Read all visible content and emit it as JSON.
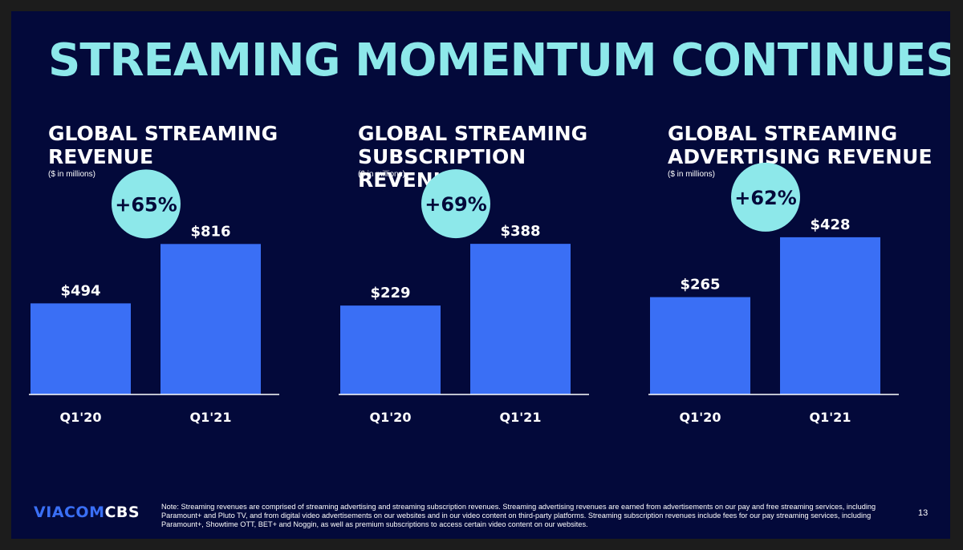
{
  "title": "STREAMING MOMENTUM CONTINUES",
  "logo": {
    "part1": "VIACOM",
    "part2": "CBS"
  },
  "note": "Note: Streaming revenues are comprised of streaming advertising and streaming subscription revenues. Streaming advertising revenues are earned from advertisements on our pay and free streaming services, including Paramount+ and Pluto TV, and from digital video advertisements on our websites and in our video content on third-party platforms. Streaming subscription revenues include fees for our pay streaming services, including Paramount+, Showtime OTT, BET+ and Noggin, as well as premium subscriptions to access certain video content on our websites.",
  "page_number": "13",
  "colors": {
    "background": "#03093a",
    "accent": "#8de8ea",
    "bar": "#3a6ff5",
    "text": "#ffffff"
  },
  "chart_data": [
    {
      "type": "bar",
      "title": "GLOBAL STREAMING\nREVENUE",
      "unit": "($ in millions)",
      "categories": [
        "Q1'20",
        "Q1'21"
      ],
      "values": [
        494,
        816
      ],
      "value_labels": [
        "$494",
        "$816"
      ],
      "growth": "+65%",
      "ylim": [
        0,
        1000
      ]
    },
    {
      "type": "bar",
      "title": "GLOBAL STREAMING\nSUBSCRIPTION REVENUE",
      "unit": "($ in millions)",
      "categories": [
        "Q1'20",
        "Q1'21"
      ],
      "values": [
        229,
        388
      ],
      "value_labels": [
        "$229",
        "$388"
      ],
      "growth": "+69%",
      "ylim": [
        0,
        475
      ]
    },
    {
      "type": "bar",
      "title": "GLOBAL STREAMING\nADVERTISING REVENUE",
      "unit": "($ in millions)",
      "categories": [
        "Q1'20",
        "Q1'21"
      ],
      "values": [
        265,
        428
      ],
      "value_labels": [
        "$265",
        "$428"
      ],
      "growth": "+62%",
      "ylim": [
        0,
        502
      ]
    }
  ]
}
